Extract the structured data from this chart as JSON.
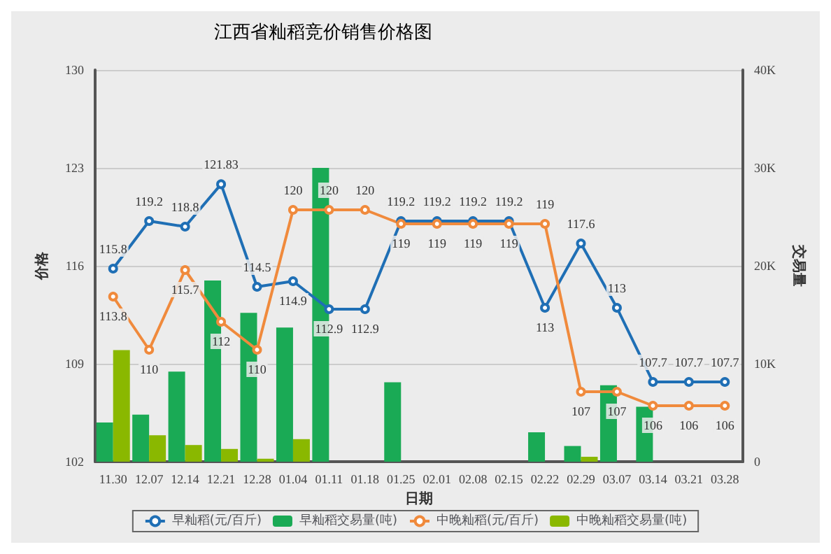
{
  "chart_data": {
    "type": "line",
    "title": "江西省籼稻竞价销售价格图",
    "xlabel": "日期",
    "ylabel": "价格",
    "y2label": "交易量",
    "categories": [
      "11.30",
      "12.07",
      "12.14",
      "12.21",
      "12.28",
      "01.04",
      "01.11",
      "01.18",
      "01.25",
      "02.01",
      "02.08",
      "02.15",
      "02.22",
      "02.29",
      "03.07",
      "03.14",
      "03.21",
      "03.28"
    ],
    "series": [
      {
        "name": "早籼稻(元/百斤)",
        "color": "#1f6fb5",
        "values": [
          115.8,
          119.2,
          118.8,
          121.83,
          114.5,
          114.9,
          112.9,
          112.9,
          119.2,
          119.2,
          119.2,
          119.2,
          113,
          117.6,
          113,
          107.7,
          107.7,
          107.7
        ],
        "value_labels": [
          "115.8",
          "119.2",
          "118.8",
          "121.83",
          "114.5",
          "114.9",
          "112.9",
          "112.9",
          "119.2",
          "119.2",
          "119.2",
          "119.2",
          "113",
          "117.6",
          "113",
          "107.7",
          "107.7",
          "107.7"
        ]
      },
      {
        "name": "早籼稻交易量(吨)",
        "type": "bar",
        "axis": "y2",
        "color": "#1aaa55",
        "values": [
          4000,
          4800,
          9200,
          18500,
          15200,
          13700,
          30000,
          0,
          8100,
          0,
          0,
          0,
          3000,
          1600,
          7800,
          5600,
          0,
          0
        ]
      },
      {
        "name": "中晚籼稻(元/百斤)",
        "color": "#f08a3c",
        "values": [
          113.8,
          110,
          115.7,
          112,
          110,
          120,
          120,
          120,
          119,
          119,
          119,
          119,
          119,
          107,
          107,
          106,
          106,
          106
        ],
        "value_labels": [
          "113.8",
          "110",
          "115.7",
          "112",
          "110",
          "120",
          "120",
          "120",
          "119",
          "119",
          "119",
          "119",
          "119",
          "107",
          "107",
          "106",
          "106",
          "106"
        ]
      },
      {
        "name": "中晚籼稻交易量(吨)",
        "type": "bar",
        "axis": "y2",
        "color": "#8ab800",
        "values": [
          11400,
          2700,
          1700,
          1300,
          300,
          2300,
          0,
          0,
          0,
          0,
          0,
          0,
          0,
          500,
          0,
          0,
          0,
          0
        ]
      }
    ],
    "ylim": [
      102,
      130
    ],
    "yticks": [
      102,
      109,
      116,
      123,
      130
    ],
    "y2lim": [
      0,
      40000
    ],
    "y2ticks": [
      0,
      {
        "value": 10000,
        "label": "10K"
      },
      {
        "value": 20000,
        "label": "20K"
      },
      {
        "value": 30000,
        "label": "30K"
      },
      {
        "value": 40000,
        "label": "40K"
      }
    ],
    "grid": "y",
    "legend": "bottom",
    "marker": "circle",
    "line_style": "solid"
  }
}
